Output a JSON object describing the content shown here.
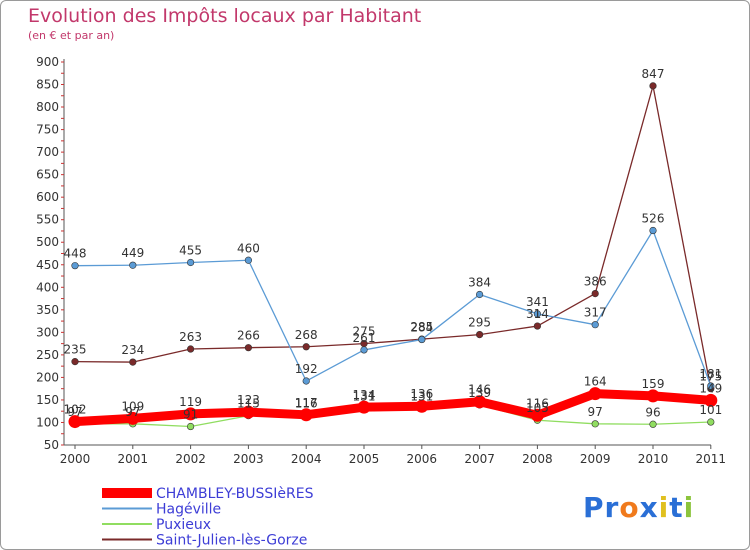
{
  "title": "Evolution des Impôts locaux par Habitant",
  "subtitle": "(en € et par an)",
  "logo": {
    "text": "Proxiti",
    "letters": [
      "P",
      "r",
      "o",
      "x",
      "i",
      "t",
      "i"
    ],
    "colors": [
      "#2a6fd6",
      "#2a6fd6",
      "#f07a1c",
      "#2a6fd6",
      "#e0c020",
      "#2a6fd6",
      "#8cc43c"
    ]
  },
  "chart_data": {
    "type": "line",
    "title": "Evolution des Impôts locaux par Habitant",
    "subtitle": "(en € et par an)",
    "xlabel": "",
    "ylabel": "",
    "x": [
      "2000",
      "2001",
      "2002",
      "2003",
      "2004",
      "2005",
      "2006",
      "2007",
      "2008",
      "2009",
      "2010",
      "2011"
    ],
    "ylim": [
      50,
      900
    ],
    "yticks": [
      50,
      100,
      150,
      200,
      250,
      300,
      350,
      400,
      450,
      500,
      550,
      600,
      650,
      700,
      750,
      800,
      850,
      900
    ],
    "grid": false,
    "legend": "bottom-left",
    "series": [
      {
        "name": "CHAMBLEY-BUSSIèRES",
        "color": "#ff0000",
        "values": [
          102,
          109,
          119,
          123,
          117,
          134,
          136,
          146,
          116,
          164,
          159,
          149
        ],
        "labels": [
          "102",
          "109",
          "119",
          "123",
          "117",
          "134",
          "136",
          "146",
          "116",
          "164",
          "159",
          "149"
        ]
      },
      {
        "name": "Hagéville",
        "color": "#5b9bd5",
        "values": [
          448,
          449,
          455,
          460,
          192,
          261,
          284,
          384,
          341,
          317,
          526,
          181
        ],
        "labels": [
          "448",
          "449",
          "455",
          "460",
          "192",
          "261",
          "284",
          "384",
          "341",
          "317",
          "526",
          "181"
        ]
      },
      {
        "name": "Puxieux",
        "color": "#90dd60",
        "values": [
          97,
          97,
          91,
          115,
          116,
          131,
          131,
          139,
          105,
          97,
          96,
          101
        ],
        "labels": [
          "97",
          "97",
          "91",
          "115",
          "116",
          "131",
          "131",
          "139",
          "105",
          "97",
          "96",
          "101"
        ]
      },
      {
        "name": "Saint-Julien-lès-Gorze",
        "color": "#7a2a2a",
        "values": [
          235,
          234,
          263,
          266,
          268,
          275,
          285,
          295,
          314,
          386,
          847,
          175
        ],
        "labels": [
          "235",
          "234",
          "263",
          "266",
          "268",
          "275",
          "285",
          "295",
          "314",
          "386",
          "847",
          "175"
        ]
      }
    ]
  }
}
